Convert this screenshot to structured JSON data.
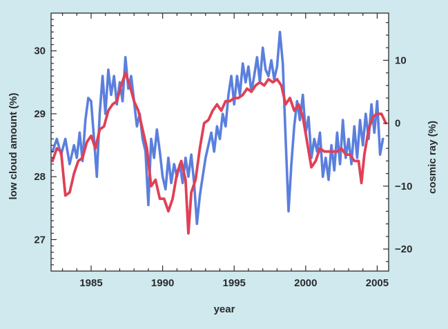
{
  "chart_data": {
    "type": "line",
    "title": "",
    "xlabel": "year",
    "ylabel_left": "low cloud amount (%)",
    "ylabel_right": "cosmic ray (%)",
    "xlim": [
      1982.2,
      2005.8
    ],
    "ylim_left": [
      26.5,
      30.6
    ],
    "ylim_right": [
      -23.5,
      17.5
    ],
    "x_ticks": [
      1985,
      1990,
      1995,
      2000,
      2005
    ],
    "x_tick_labels": [
      "1985",
      "1990",
      "1995",
      "2000",
      "2005"
    ],
    "y_left_ticks": [
      27,
      28,
      29,
      30
    ],
    "y_left_tick_labels": [
      "27",
      "28",
      "29",
      "30"
    ],
    "y_right_ticks": [
      -20,
      -10,
      0,
      10
    ],
    "y_right_tick_labels": [
      "−20",
      "−10",
      "0",
      "10"
    ],
    "grid": false,
    "series": [
      {
        "name": "",
        "axis": "left",
        "color": "#5b7fdd",
        "points": [
          [
            1982.3,
            28.4
          ],
          [
            1982.6,
            28.6
          ],
          [
            1982.9,
            28.35
          ],
          [
            1983.2,
            28.6
          ],
          [
            1983.5,
            28.2
          ],
          [
            1983.8,
            28.5
          ],
          [
            1984.0,
            28.3
          ],
          [
            1984.2,
            28.7
          ],
          [
            1984.4,
            28.25
          ],
          [
            1984.6,
            28.9
          ],
          [
            1984.8,
            29.25
          ],
          [
            1985.0,
            29.2
          ],
          [
            1985.2,
            28.6
          ],
          [
            1985.4,
            28.0
          ],
          [
            1985.6,
            29.0
          ],
          [
            1985.8,
            29.6
          ],
          [
            1986.0,
            29.0
          ],
          [
            1986.2,
            29.7
          ],
          [
            1986.4,
            29.3
          ],
          [
            1986.6,
            29.6
          ],
          [
            1986.8,
            29.15
          ],
          [
            1987.0,
            29.5
          ],
          [
            1987.2,
            29.2
          ],
          [
            1987.4,
            29.9
          ],
          [
            1987.6,
            29.4
          ],
          [
            1987.8,
            29.6
          ],
          [
            1988.0,
            29.2
          ],
          [
            1988.2,
            28.8
          ],
          [
            1988.4,
            29.0
          ],
          [
            1988.6,
            28.6
          ],
          [
            1988.8,
            28.4
          ],
          [
            1989.0,
            27.55
          ],
          [
            1989.2,
            28.6
          ],
          [
            1989.4,
            28.3
          ],
          [
            1989.6,
            28.75
          ],
          [
            1989.8,
            28.4
          ],
          [
            1990.0,
            28.0
          ],
          [
            1990.2,
            27.8
          ],
          [
            1990.4,
            28.3
          ],
          [
            1990.6,
            27.9
          ],
          [
            1990.8,
            28.2
          ],
          [
            1991.0,
            28.0
          ],
          [
            1991.2,
            28.2
          ],
          [
            1991.4,
            27.9
          ],
          [
            1991.6,
            28.3
          ],
          [
            1991.8,
            28.0
          ],
          [
            1992.0,
            28.35
          ],
          [
            1992.2,
            27.9
          ],
          [
            1992.4,
            27.25
          ],
          [
            1992.6,
            27.7
          ],
          [
            1992.8,
            28.0
          ],
          [
            1993.0,
            28.3
          ],
          [
            1993.2,
            28.5
          ],
          [
            1993.4,
            28.7
          ],
          [
            1993.6,
            28.4
          ],
          [
            1993.8,
            28.8
          ],
          [
            1994.0,
            28.6
          ],
          [
            1994.2,
            29.0
          ],
          [
            1994.4,
            28.8
          ],
          [
            1994.6,
            29.3
          ],
          [
            1994.8,
            29.6
          ],
          [
            1995.0,
            29.15
          ],
          [
            1995.2,
            29.6
          ],
          [
            1995.4,
            29.3
          ],
          [
            1995.6,
            29.8
          ],
          [
            1995.8,
            29.5
          ],
          [
            1996.0,
            29.75
          ],
          [
            1996.2,
            29.35
          ],
          [
            1996.4,
            29.6
          ],
          [
            1996.6,
            29.9
          ],
          [
            1996.8,
            29.5
          ],
          [
            1997.0,
            30.05
          ],
          [
            1997.2,
            29.7
          ],
          [
            1997.4,
            29.6
          ],
          [
            1997.6,
            29.85
          ],
          [
            1997.8,
            29.55
          ],
          [
            1998.0,
            29.75
          ],
          [
            1998.2,
            30.3
          ],
          [
            1998.4,
            29.8
          ],
          [
            1998.6,
            28.6
          ],
          [
            1998.8,
            27.45
          ],
          [
            1999.0,
            28.2
          ],
          [
            1999.2,
            28.8
          ],
          [
            1999.4,
            29.2
          ],
          [
            1999.6,
            28.9
          ],
          [
            1999.8,
            29.3
          ],
          [
            2000.0,
            28.7
          ],
          [
            2000.2,
            28.95
          ],
          [
            2000.4,
            28.3
          ],
          [
            2000.6,
            28.6
          ],
          [
            2000.8,
            28.4
          ],
          [
            2001.0,
            28.7
          ],
          [
            2001.2,
            28.0
          ],
          [
            2001.4,
            28.3
          ],
          [
            2001.6,
            27.95
          ],
          [
            2001.8,
            28.5
          ],
          [
            2002.0,
            28.1
          ],
          [
            2002.2,
            28.7
          ],
          [
            2002.4,
            28.2
          ],
          [
            2002.6,
            28.9
          ],
          [
            2002.8,
            28.3
          ],
          [
            2003.0,
            28.6
          ],
          [
            2003.2,
            28.2
          ],
          [
            2003.4,
            28.8
          ],
          [
            2003.6,
            28.3
          ],
          [
            2003.8,
            28.9
          ],
          [
            2004.0,
            28.5
          ],
          [
            2004.2,
            29.0
          ],
          [
            2004.4,
            28.6
          ],
          [
            2004.6,
            29.15
          ],
          [
            2004.8,
            28.7
          ],
          [
            2005.0,
            29.2
          ],
          [
            2005.2,
            28.35
          ],
          [
            2005.4,
            28.6
          ]
        ]
      },
      {
        "name": "",
        "axis": "right",
        "color": "#e04055",
        "points": [
          [
            1982.3,
            -6
          ],
          [
            1982.6,
            -4
          ],
          [
            1982.9,
            -4.5
          ],
          [
            1983.2,
            -11.5
          ],
          [
            1983.5,
            -11
          ],
          [
            1983.8,
            -8
          ],
          [
            1984.1,
            -6
          ],
          [
            1984.4,
            -5.5
          ],
          [
            1984.7,
            -3
          ],
          [
            1985.0,
            -2
          ],
          [
            1985.3,
            -4
          ],
          [
            1985.6,
            -1
          ],
          [
            1985.9,
            -0.5
          ],
          [
            1986.2,
            2
          ],
          [
            1986.5,
            3
          ],
          [
            1986.8,
            3.5
          ],
          [
            1987.1,
            6
          ],
          [
            1987.4,
            8
          ],
          [
            1987.7,
            6
          ],
          [
            1988.0,
            3.5
          ],
          [
            1988.3,
            2
          ],
          [
            1988.6,
            -1
          ],
          [
            1988.9,
            -4
          ],
          [
            1989.2,
            -10
          ],
          [
            1989.5,
            -9
          ],
          [
            1989.8,
            -12
          ],
          [
            1990.1,
            -12
          ],
          [
            1990.4,
            -14
          ],
          [
            1990.7,
            -12
          ],
          [
            1991.0,
            -8
          ],
          [
            1991.3,
            -6
          ],
          [
            1991.6,
            -9
          ],
          [
            1991.8,
            -17.5
          ],
          [
            1992.0,
            -11
          ],
          [
            1992.3,
            -9
          ],
          [
            1992.6,
            -4
          ],
          [
            1992.9,
            0
          ],
          [
            1993.2,
            0.5
          ],
          [
            1993.5,
            2
          ],
          [
            1993.8,
            3
          ],
          [
            1994.1,
            2
          ],
          [
            1994.4,
            3.5
          ],
          [
            1994.7,
            3.5
          ],
          [
            1995.0,
            4
          ],
          [
            1995.3,
            4
          ],
          [
            1995.6,
            4.5
          ],
          [
            1995.9,
            5.5
          ],
          [
            1996.2,
            5
          ],
          [
            1996.5,
            6
          ],
          [
            1996.8,
            6.5
          ],
          [
            1997.1,
            6
          ],
          [
            1997.4,
            7
          ],
          [
            1997.7,
            6.5
          ],
          [
            1998.0,
            7
          ],
          [
            1998.3,
            6
          ],
          [
            1998.6,
            3
          ],
          [
            1998.9,
            4
          ],
          [
            1999.2,
            2
          ],
          [
            1999.5,
            3
          ],
          [
            1999.8,
            1
          ],
          [
            2000.1,
            -3
          ],
          [
            2000.4,
            -7
          ],
          [
            2000.7,
            -6
          ],
          [
            2001.0,
            -4
          ],
          [
            2001.3,
            -4.5
          ],
          [
            2001.6,
            -4.5
          ],
          [
            2001.9,
            -4.5
          ],
          [
            2002.2,
            -4.5
          ],
          [
            2002.5,
            -4
          ],
          [
            2002.8,
            -5
          ],
          [
            2003.1,
            -5
          ],
          [
            2003.4,
            -6
          ],
          [
            2003.7,
            -6
          ],
          [
            2003.9,
            -9.5
          ],
          [
            2004.1,
            -5
          ],
          [
            2004.4,
            -1
          ],
          [
            2004.7,
            1
          ],
          [
            2005.0,
            1.5
          ],
          [
            2005.3,
            1.5
          ],
          [
            2005.6,
            0
          ]
        ]
      }
    ]
  },
  "colors": {
    "background": "#cfe9ee",
    "plot_background": "#ffffff",
    "axis": "#2a2a2a"
  }
}
